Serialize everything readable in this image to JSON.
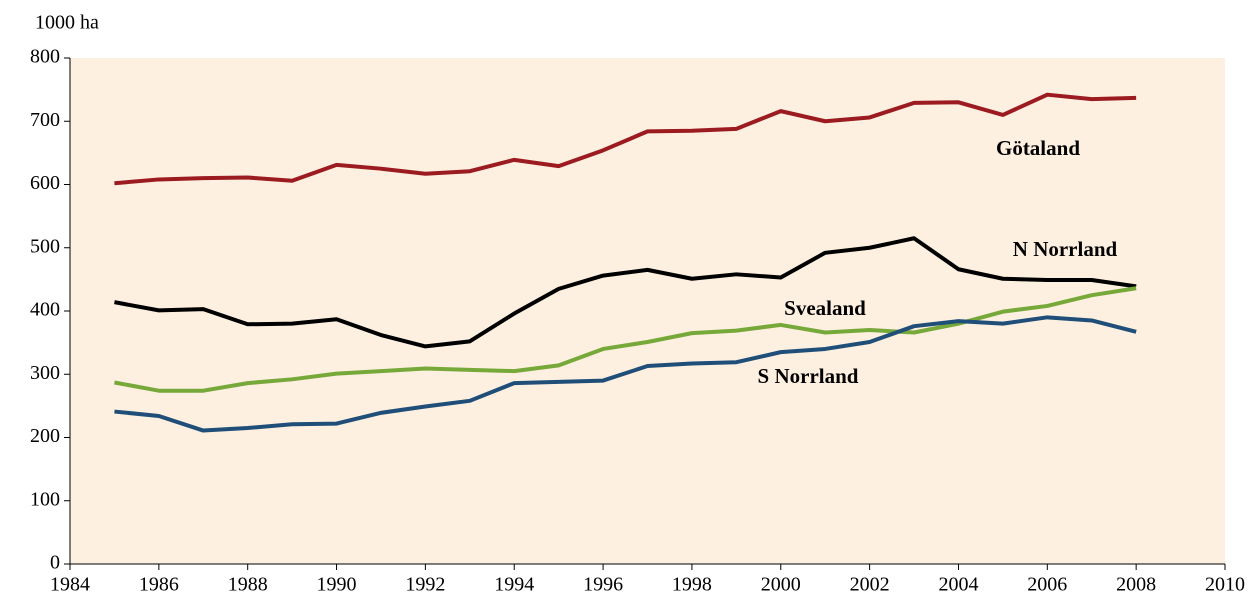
{
  "chart_data": {
    "type": "line",
    "y_label": "1000 ha",
    "x": [
      1985,
      1986,
      1987,
      1988,
      1989,
      1990,
      1991,
      1992,
      1993,
      1994,
      1995,
      1996,
      1997,
      1998,
      1999,
      2000,
      2001,
      2002,
      2003,
      2004,
      2005,
      2006,
      2007,
      2008
    ],
    "series": [
      {
        "name": "Götaland",
        "color": "#9b1b21",
        "values": [
          602,
          608,
          610,
          611,
          606,
          631,
          625,
          617,
          621,
          639,
          629,
          654,
          684,
          685,
          688,
          716,
          700,
          706,
          729,
          730,
          710,
          742,
          735,
          737
        ]
      },
      {
        "name": "N Norrland",
        "color": "#000000",
        "values": [
          414,
          401,
          403,
          379,
          380,
          387,
          362,
          344,
          352,
          396,
          435,
          456,
          465,
          451,
          458,
          453,
          492,
          500,
          515,
          466,
          451,
          449,
          449,
          439
        ]
      },
      {
        "name": "Svealand",
        "color": "#77a83a",
        "values": [
          287,
          274,
          274,
          286,
          292,
          301,
          305,
          309,
          307,
          305,
          314,
          340,
          351,
          365,
          369,
          378,
          366,
          370,
          366,
          380,
          399,
          408,
          425,
          436
        ]
      },
      {
        "name": "S Norrland",
        "color": "#1f4e79",
        "values": [
          241,
          234,
          211,
          215,
          221,
          222,
          239,
          249,
          258,
          286,
          288,
          290,
          313,
          317,
          319,
          335,
          340,
          351,
          376,
          384,
          380,
          390,
          385,
          367
        ]
      }
    ],
    "xlim": [
      1984,
      2010
    ],
    "xticks": [
      1984,
      1986,
      1988,
      1990,
      1992,
      1994,
      1996,
      1998,
      2000,
      2002,
      2004,
      2006,
      2008,
      2010
    ],
    "ylim": [
      0,
      800
    ],
    "yticks": [
      0,
      100,
      200,
      300,
      400,
      500,
      600,
      700,
      800
    ],
    "plot_background": "#fdf0e0"
  }
}
